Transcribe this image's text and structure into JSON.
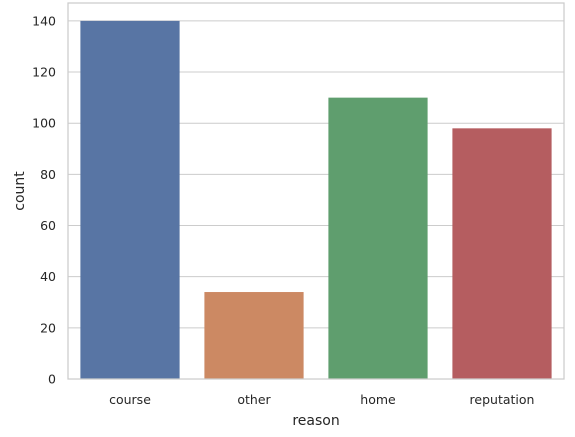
{
  "chart_data": {
    "type": "bar",
    "categories": [
      "course",
      "other",
      "home",
      "reputation"
    ],
    "values": [
      140,
      34,
      110,
      98
    ],
    "colors": [
      "#5875a4",
      "#cc8963",
      "#5f9e6e",
      "#b55d60"
    ],
    "xlabel": "reason",
    "ylabel": "count",
    "ylim": [
      0,
      147
    ],
    "yticks": [
      0,
      20,
      40,
      60,
      80,
      100,
      120,
      140
    ],
    "grid": true,
    "grid_axis": "y"
  }
}
